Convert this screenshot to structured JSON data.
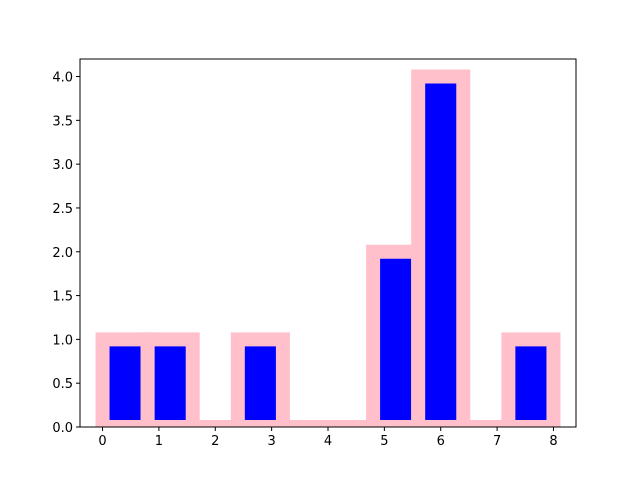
{
  "chart_data": {
    "type": "histogram",
    "bins": [
      0,
      0.8,
      1.6,
      2.4,
      3.2,
      4.0,
      4.8,
      5.6,
      6.4,
      7.2,
      8.0
    ],
    "values": [
      1,
      1,
      0,
      1,
      0,
      0,
      2,
      4,
      0,
      1
    ],
    "color": "#0000ff",
    "edgecolor": "#ffc0cb",
    "xlim": [
      -0.4,
      8.4
    ],
    "xticks": [
      0,
      1,
      2,
      3,
      4,
      5,
      6,
      7,
      8
    ],
    "ylim": [
      0,
      4.2
    ],
    "yticks": [
      {
        "value": 0,
        "label": "0.0"
      },
      {
        "value": 0.5,
        "label": "0.5"
      },
      {
        "value": 1,
        "label": "1.0"
      },
      {
        "value": 1.5,
        "label": "1.5"
      },
      {
        "value": 2,
        "label": "2.0"
      },
      {
        "value": 2.5,
        "label": "2.5"
      },
      {
        "value": 3,
        "label": "3.0"
      },
      {
        "value": 3.5,
        "label": "3.5"
      },
      {
        "value": 4,
        "label": "4.0"
      }
    ]
  }
}
